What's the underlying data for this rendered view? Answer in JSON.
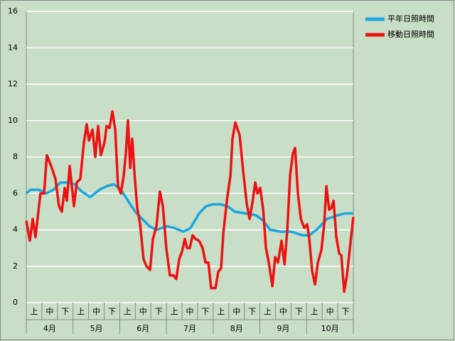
{
  "chart_data": {
    "type": "line",
    "categories": [
      "上",
      "中",
      "下",
      "上",
      "中",
      "下",
      "上",
      "中",
      "下",
      "上",
      "中",
      "下",
      "上",
      "中",
      "下",
      "上",
      "中",
      "下",
      "上",
      "中",
      "下"
    ],
    "months": [
      "4月",
      "5月",
      "6月",
      "7月",
      "8月",
      "9月",
      "10月"
    ],
    "xlim": [
      0,
      21
    ],
    "ylim": [
      0,
      16
    ],
    "yticks": [
      0,
      2,
      4,
      6,
      8,
      10,
      12,
      14,
      16
    ],
    "grid": true,
    "legend": "top-right",
    "series": [
      {
        "name": "平年日照時間",
        "color": "#1ba6e0",
        "x": [
          0,
          0.27,
          0.82,
          1.28,
          1.74,
          2.19,
          2.65,
          3.11,
          3.56,
          4.11,
          4.7,
          5.16,
          5.62,
          6.07,
          6.53,
          6.99,
          7.44,
          7.9,
          8.36,
          9.04,
          9.5,
          10.09,
          10.55,
          11.1,
          11.55,
          12.01,
          12.47,
          12.92,
          13.38,
          14.06,
          14.75,
          15.21,
          15.66,
          16.35,
          17.03,
          17.72,
          18.17,
          18.63,
          19.32,
          20.0,
          20.46,
          21
        ],
        "values": [
          6.0,
          6.2,
          6.2,
          6.0,
          6.2,
          6.6,
          6.6,
          6.5,
          6.1,
          5.8,
          6.2,
          6.4,
          6.5,
          6.2,
          5.6,
          5.0,
          4.6,
          4.2,
          4.0,
          4.2,
          4.1,
          3.9,
          4.1,
          4.9,
          5.3,
          5.4,
          5.4,
          5.3,
          5.0,
          4.9,
          4.8,
          4.5,
          4.0,
          3.9,
          3.9,
          3.7,
          3.7,
          4.0,
          4.6,
          4.8,
          4.9,
          4.9
        ]
      },
      {
        "name": "移動日照時間",
        "color": "#ee1111",
        "x": [
          0,
          0.23,
          0.41,
          0.59,
          0.91,
          1.14,
          1.32,
          1.6,
          1.87,
          2.1,
          2.28,
          2.47,
          2.6,
          2.79,
          3.06,
          3.24,
          3.47,
          3.7,
          3.88,
          4.02,
          4.25,
          4.43,
          4.61,
          4.79,
          5.02,
          5.16,
          5.34,
          5.53,
          5.71,
          5.89,
          6.07,
          6.26,
          6.39,
          6.53,
          6.67,
          6.8,
          6.94,
          7.12,
          7.31,
          7.53,
          7.72,
          7.95,
          8.13,
          8.36,
          8.58,
          8.77,
          8.99,
          9.22,
          9.45,
          9.63,
          9.82,
          10.0,
          10.18,
          10.32,
          10.5,
          10.68,
          10.87,
          11.1,
          11.32,
          11.51,
          11.69,
          11.87,
          12.15,
          12.33,
          12.51,
          12.65,
          12.88,
          13.11,
          13.24,
          13.42,
          13.7,
          13.93,
          14.16,
          14.34,
          14.52,
          14.7,
          14.84,
          15.02,
          15.21,
          15.39,
          15.57,
          15.8,
          15.98,
          16.16,
          16.39,
          16.58,
          16.76,
          16.94,
          17.12,
          17.26,
          17.44,
          17.63,
          17.85,
          18.04,
          18.17,
          18.36,
          18.54,
          18.72,
          18.95,
          19.13,
          19.27,
          19.45,
          19.59,
          19.73,
          19.91,
          20.09,
          20.23,
          20.41,
          20.59,
          20.78,
          21
        ],
        "values": [
          4.5,
          3.4,
          4.6,
          3.6,
          6.0,
          6.0,
          8.1,
          7.5,
          6.8,
          5.3,
          5.0,
          6.3,
          5.6,
          7.5,
          5.3,
          6.6,
          6.8,
          8.8,
          9.8,
          8.9,
          9.5,
          8.0,
          9.7,
          8.1,
          8.8,
          9.7,
          9.6,
          10.5,
          9.5,
          6.4,
          6.0,
          7.0,
          8.2,
          10.0,
          7.4,
          9.0,
          7.2,
          5.2,
          4.3,
          2.4,
          2.0,
          1.8,
          3.5,
          4.2,
          6.1,
          5.3,
          3.0,
          1.5,
          1.5,
          1.3,
          2.4,
          2.8,
          3.5,
          3.0,
          3.0,
          3.7,
          3.5,
          3.4,
          3.0,
          2.2,
          2.2,
          0.8,
          0.8,
          1.7,
          1.9,
          3.8,
          5.6,
          7.0,
          9.0,
          9.9,
          9.2,
          7.2,
          5.4,
          4.6,
          5.5,
          6.6,
          6.0,
          6.3,
          5.1,
          3.0,
          2.2,
          0.9,
          2.5,
          2.2,
          3.4,
          2.1,
          4.0,
          7.0,
          8.2,
          8.5,
          6.0,
          4.6,
          4.1,
          4.3,
          3.5,
          1.7,
          1.0,
          2.2,
          2.9,
          4.3,
          6.4,
          5.1,
          5.2,
          5.6,
          3.6,
          2.7,
          2.6,
          0.6,
          1.5,
          3.0,
          4.7
        ]
      }
    ]
  }
}
